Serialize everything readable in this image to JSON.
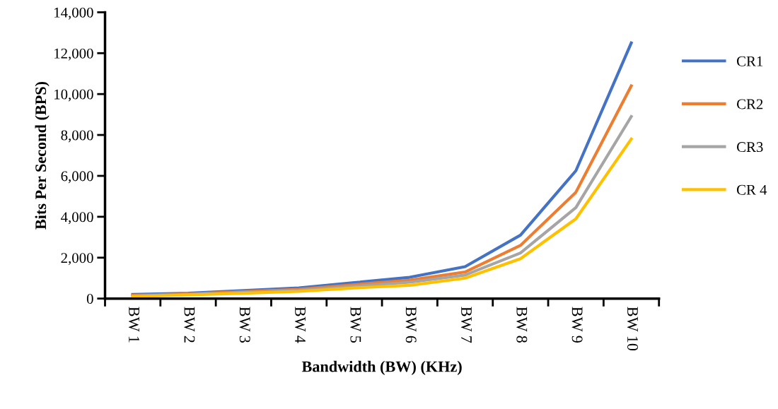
{
  "chart_data": {
    "type": "line",
    "xlabel": "Bandwidth (BW) (KHz)",
    "ylabel": "Bits Per Second (BPS)",
    "categories": [
      "BW 1",
      "BW 2",
      "BW 3",
      "BW 4",
      "BW 5",
      "BW 6",
      "BW 7",
      "BW 8",
      "BW 9",
      "BW 10"
    ],
    "series": [
      {
        "name": "CR1",
        "color": "#4472c4",
        "values": [
          200,
          260,
          390,
          520,
          780,
          1040,
          1560,
          3100,
          6250,
          12500
        ]
      },
      {
        "name": "CR2",
        "color": "#ed7d31",
        "values": [
          160,
          230,
          340,
          450,
          680,
          900,
          1300,
          2600,
          5200,
          10400
        ]
      },
      {
        "name": "CR3",
        "color": "#a5a5a5",
        "values": [
          130,
          200,
          300,
          400,
          600,
          800,
          1150,
          2230,
          4450,
          8900
        ]
      },
      {
        "name": "CR 4",
        "color": "#ffc000",
        "values": [
          100,
          180,
          260,
          350,
          520,
          650,
          1000,
          1950,
          3900,
          7800
        ]
      }
    ],
    "ylim": [
      0,
      14000
    ],
    "yticks": [
      0,
      {
        "value": 2000,
        "label": "2,000"
      },
      {
        "value": 4000,
        "label": "4,000"
      },
      {
        "value": 6000,
        "label": "6,000"
      },
      {
        "value": 8000,
        "label": "8,000"
      },
      {
        "value": 10000,
        "label": "10,000"
      },
      {
        "value": 12000,
        "label": "12,000"
      },
      {
        "value": 14000,
        "label": "14,000"
      }
    ],
    "grid": false,
    "legend": "right",
    "marker": "none",
    "line_style": "solid"
  }
}
